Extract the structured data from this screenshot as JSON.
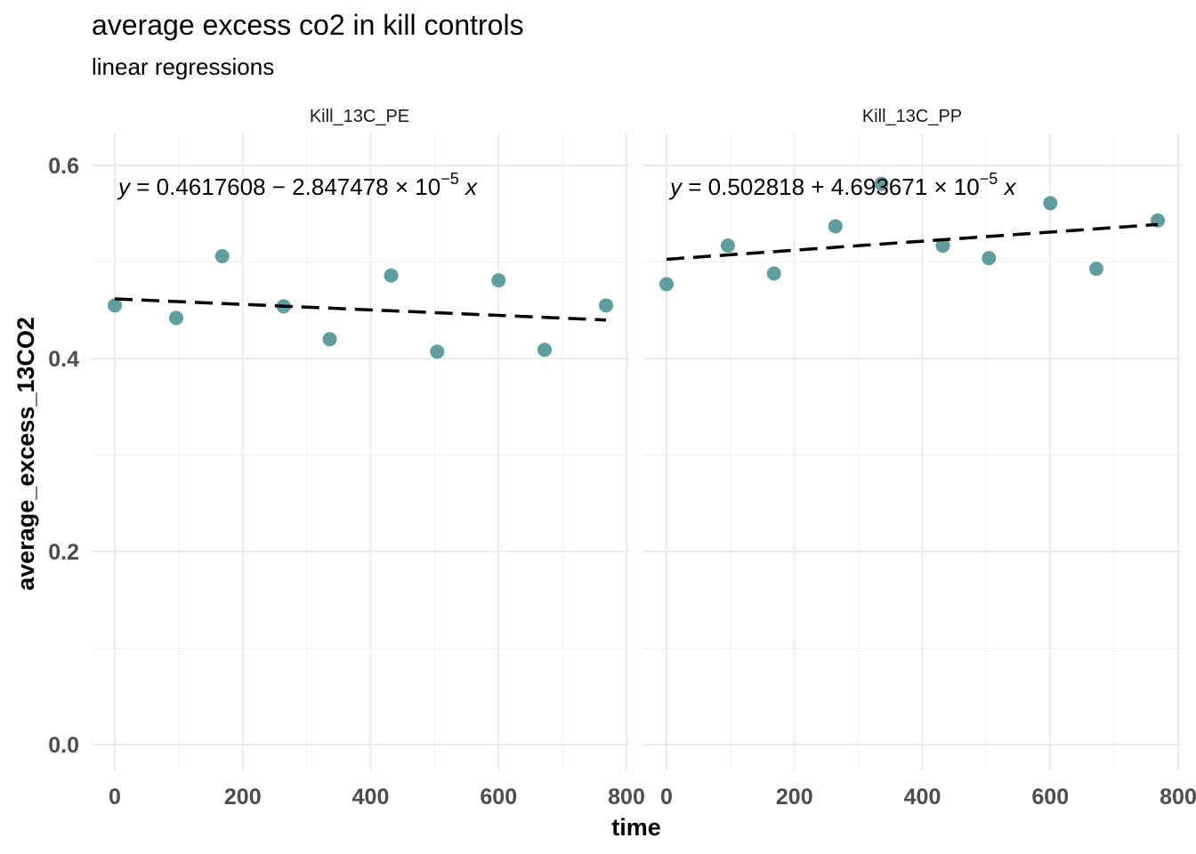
{
  "title": "average excess co2 in kill controls",
  "subtitle": "linear regressions",
  "chart_data": {
    "type": "scatter",
    "xlabel": "time",
    "ylabel": "average_excess_13CO2",
    "xlim": [
      -30,
      800
    ],
    "ylim": [
      0.0,
      0.6
    ],
    "x_ticks": [
      0,
      200,
      400,
      600,
      800
    ],
    "y_ticks": [
      0.0,
      0.2,
      0.4,
      0.6
    ],
    "point_color": "#5F9EA0",
    "line_style": "dashed",
    "grid": true,
    "panels": [
      {
        "name": "Kill_13C_PE",
        "x": [
          0,
          96,
          168,
          264,
          336,
          432,
          504,
          600,
          672,
          768
        ],
        "y": [
          0.455,
          0.442,
          0.506,
          0.454,
          0.42,
          0.486,
          0.407,
          0.481,
          0.409,
          0.455
        ],
        "regression": {
          "prefix": "0.4617608",
          "op": "−",
          "coef": "2.847478",
          "intercept": 0.4617608,
          "slope": -2.847478e-05,
          "x_range": [
            0,
            768
          ]
        }
      },
      {
        "name": "Kill_13C_PP",
        "x": [
          0,
          96,
          168,
          264,
          336,
          432,
          504,
          600,
          672,
          768
        ],
        "y": [
          0.477,
          0.517,
          0.488,
          0.537,
          0.581,
          0.517,
          0.504,
          0.561,
          0.493,
          0.543
        ],
        "regression": {
          "prefix": "0.502818",
          "op": "+",
          "coef": "4.693671",
          "intercept": 0.502818,
          "slope": 4.693671e-05,
          "x_range": [
            0,
            768
          ]
        }
      }
    ]
  }
}
